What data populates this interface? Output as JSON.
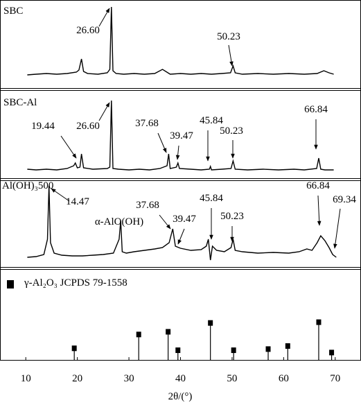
{
  "chart_data": [
    {
      "type": "line",
      "label": "SBC",
      "xlim": [
        5,
        75
      ],
      "ylim": [
        0,
        128
      ],
      "color": "#000000",
      "annotations": [
        "26.60",
        "50.23"
      ],
      "x": [
        10.3,
        12,
        14,
        16,
        18,
        19.8,
        20.3,
        20.8,
        21.2,
        22,
        24,
        25.8,
        26.3,
        26.6,
        26.9,
        27.5,
        29,
        31,
        33,
        35,
        36.5,
        38,
        40,
        42,
        44,
        46,
        48,
        49.7,
        50.2,
        50.6,
        52,
        55,
        58,
        61,
        64,
        66.5,
        67.8,
        68.8,
        69.7
      ],
      "values": [
        20,
        21,
        22,
        21,
        22,
        24,
        27,
        43,
        25,
        22,
        21,
        23,
        28,
        118,
        26,
        22,
        21,
        22,
        21,
        22,
        28,
        21,
        22,
        21,
        22,
        21,
        22,
        23,
        33,
        23,
        21,
        22,
        21,
        22,
        21,
        22,
        26,
        23,
        21
      ]
    },
    {
      "type": "line",
      "label": "SBC-Al",
      "xlim": [
        5,
        75
      ],
      "ylim": [
        0,
        127
      ],
      "color": "#000000",
      "annotations": [
        "19.44",
        "26.60",
        "37.68",
        "39.47",
        "45.84",
        "50.23",
        "66.84"
      ],
      "x": [
        10.3,
        12,
        14,
        16,
        18,
        19.3,
        19.6,
        20,
        20.5,
        20.8,
        21.2,
        23,
        25.8,
        26.3,
        26.6,
        26.9,
        28,
        30,
        32,
        34,
        36,
        37.4,
        37.7,
        38,
        39.2,
        39.5,
        39.8,
        42,
        44,
        45.6,
        45.8,
        46,
        48,
        49.8,
        50.2,
        50.6,
        53,
        56,
        59,
        62,
        64,
        66.4,
        66.8,
        67.2,
        68,
        69.7
      ],
      "values": [
        13,
        12,
        13,
        12,
        14,
        18,
        22,
        15,
        16,
        35,
        15,
        13,
        14,
        16,
        112,
        14,
        13,
        12,
        13,
        12,
        14,
        18,
        35,
        14,
        16,
        22,
        14,
        13,
        12,
        13,
        17,
        12,
        13,
        14,
        25,
        13,
        12,
        13,
        12,
        13,
        12,
        14,
        29,
        13,
        12,
        12
      ]
    },
    {
      "type": "line",
      "label": "Al(OH)₃500",
      "xlim": [
        5,
        75
      ],
      "ylim": [
        0,
        125
      ],
      "color": "#000000",
      "annotations": [
        "14.47",
        "α-AlO(OH)",
        "37.68",
        "39.47",
        "45.84",
        "50.23",
        "66.84",
        "69.34"
      ],
      "x": [
        10.3,
        12,
        13.5,
        14.2,
        14.5,
        14.8,
        15.5,
        17,
        19,
        21,
        23,
        25,
        27,
        28.1,
        28.4,
        28.7,
        29.5,
        31,
        33,
        35,
        36.5,
        37.8,
        38.5,
        39,
        40,
        42,
        44,
        45,
        45.4,
        45.8,
        46.2,
        47,
        48.5,
        49.8,
        50.2,
        50.6,
        52,
        55,
        58,
        61,
        63,
        64.5,
        65.5,
        66.5,
        67.2,
        68,
        68.8,
        69.5,
        70.2
      ],
      "values": [
        14,
        15,
        18,
        40,
        117,
        35,
        20,
        17,
        16,
        16,
        17,
        18,
        20,
        40,
        67,
        22,
        20,
        22,
        24,
        26,
        28,
        35,
        55,
        30,
        27,
        24,
        25,
        30,
        40,
        10,
        30,
        24,
        22,
        28,
        40,
        24,
        22,
        20,
        21,
        20,
        22,
        26,
        24,
        35,
        45,
        38,
        28,
        18,
        14
      ]
    },
    {
      "type": "stem",
      "label": "γ-Al₂O₃ JCPDS 79-1558",
      "xlim": [
        5,
        75
      ],
      "ylim": [
        0,
        240
      ],
      "color": "#000000",
      "x": [
        19.4,
        31.9,
        37.6,
        39.5,
        45.8,
        50.3,
        57.0,
        60.8,
        66.8,
        69.3
      ],
      "values": [
        32,
        68,
        75,
        27,
        98,
        27,
        30,
        38,
        100,
        21
      ],
      "xticks": [
        10,
        20,
        30,
        40,
        50,
        60,
        70
      ],
      "xlabel": "2θ/(°)"
    }
  ]
}
